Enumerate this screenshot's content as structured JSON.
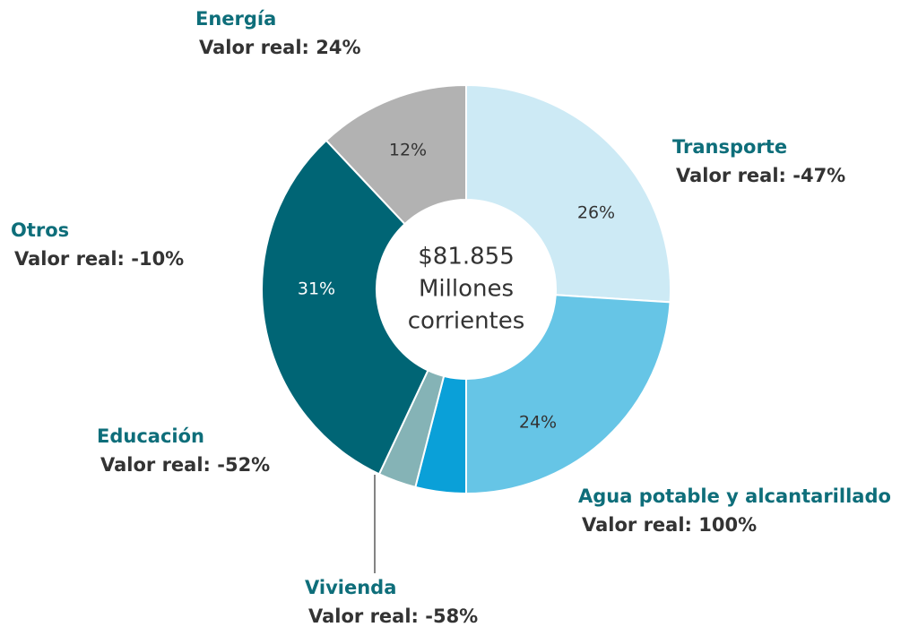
{
  "chart_data": {
    "type": "donut",
    "categories": [
      "Transporte",
      "Agua potable y alcantarillado",
      "Vivienda",
      "Educación",
      "Otros",
      "Energía"
    ],
    "values": [
      26,
      24,
      4,
      3,
      31,
      12
    ],
    "value_labels": [
      "26%",
      "24%",
      "4%",
      "3%",
      "31%",
      "12%"
    ],
    "annotations": [
      "Valor real: -47%",
      "Valor real: 100%",
      "Valor real: -58%",
      "Valor real: -52%",
      "Valor real: -10%",
      "Valor real: 24%"
    ],
    "colors": [
      "#cdeaf5",
      "#66c5e6",
      "#0aa0d8",
      "#85b3b6",
      "#006575",
      "#b2b2b2"
    ],
    "center_label": [
      "$81.855",
      "Millones",
      "corrientes"
    ]
  }
}
